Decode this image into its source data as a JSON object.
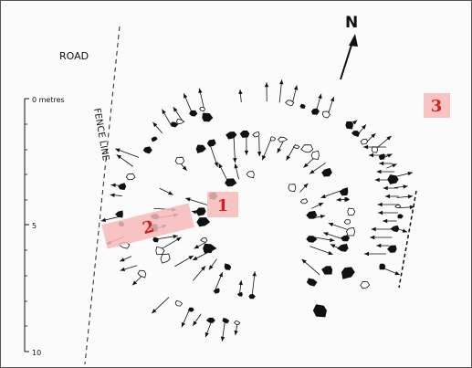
{
  "labels": {
    "road": "ROAD",
    "fence": "FENCE LINE",
    "north": "N"
  },
  "scale": {
    "ticks": [
      "0 metres",
      "5",
      "10"
    ]
  },
  "areas": [
    {
      "id": "1",
      "label": "1"
    },
    {
      "id": "2",
      "label": "2"
    },
    {
      "id": "3",
      "label": "3"
    }
  ],
  "colors": {
    "area_box": "#f6b9b9",
    "area_text": "#d42020",
    "ink": "#111111",
    "paper": "#fbfbfb"
  }
}
